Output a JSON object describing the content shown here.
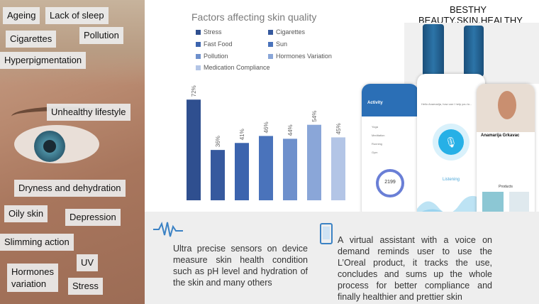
{
  "photo_tags": [
    "Ageing",
    "Lack of sleep",
    "Cigarettes",
    "Pollution",
    "Hyperpigmentation",
    "Unhealthy lifestyle",
    "Dryness and dehydration",
    "Oily skin",
    "Depression",
    "Slimming action",
    "UV",
    "Hormones\nvariation",
    "Stress"
  ],
  "chart_data": {
    "type": "bar",
    "title": "Factors affecting skin quality",
    "categories": [
      "Stress",
      "Cigarettes",
      "Fast Food",
      "Sun",
      "Pollution",
      "Hormones Variation",
      "Medication Compliance"
    ],
    "values": [
      72,
      36,
      41,
      46,
      44,
      54,
      45
    ],
    "data_labels": [
      "72%",
      "36%",
      "41%",
      "46%",
      "44%",
      "54%",
      "45%"
    ],
    "colors": [
      "#2f4f8f",
      "#36599e",
      "#3c64ae",
      "#4a73bb",
      "#6e90cc",
      "#8aa6d8",
      "#b3c5e6"
    ],
    "legend_position": "top",
    "ylim": [
      0,
      80
    ]
  },
  "brand": {
    "line1": "BESTHY",
    "line2": "BEAUTY.SKIN.HEALTHY"
  },
  "app": {
    "activity_title": "Activity",
    "activity_items": [
      "Yoga",
      "Meditation",
      "Running",
      "Gym"
    ],
    "activity_count": "2199",
    "assistant_greeting": "Hello Anamarija, how can I help you to...",
    "listening": "Listening",
    "profile_name": "Anamarija Grkavac",
    "products_label": "Products"
  },
  "features": {
    "sensors_text": "Ultra precise sensors on device measure skin health condition such as pH level and hydration of the skin and many others",
    "assistant_text": "A virtual assistant with a voice on demand reminds user to use the L’Oreal product, it tracks the use, concludes and sums up the whole process for better compliance and finally healthier and prettier skin"
  }
}
